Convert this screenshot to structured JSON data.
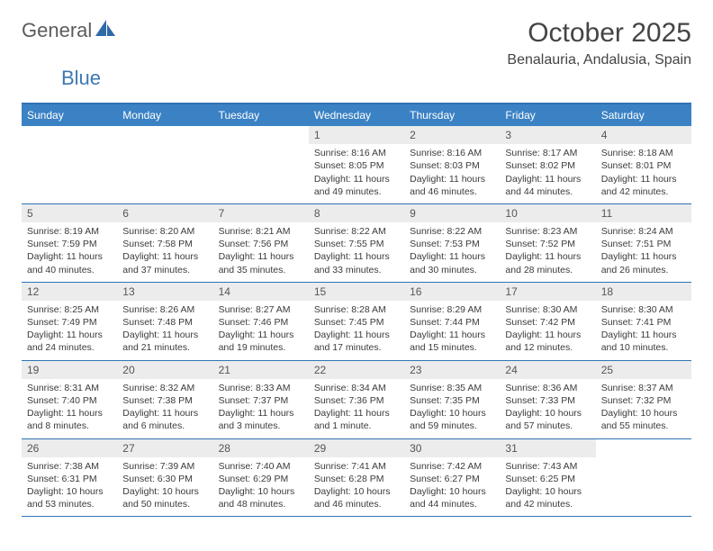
{
  "brand": {
    "name1": "General",
    "name2": "Blue"
  },
  "title": "October 2025",
  "location": "Benalauria, Andalusia, Spain",
  "colors": {
    "header_bg": "#3b82c4",
    "rule": "#2f72b6",
    "daynum_bg": "#ececec",
    "text": "#3b3b3b"
  },
  "day_headers": [
    "Sunday",
    "Monday",
    "Tuesday",
    "Wednesday",
    "Thursday",
    "Friday",
    "Saturday"
  ],
  "weeks": [
    [
      {
        "n": "",
        "sr": "",
        "ss": "",
        "dl": "",
        "empty": true
      },
      {
        "n": "",
        "sr": "",
        "ss": "",
        "dl": "",
        "empty": true
      },
      {
        "n": "",
        "sr": "",
        "ss": "",
        "dl": "",
        "empty": true
      },
      {
        "n": "1",
        "sr": "Sunrise: 8:16 AM",
        "ss": "Sunset: 8:05 PM",
        "dl": "Daylight: 11 hours and 49 minutes."
      },
      {
        "n": "2",
        "sr": "Sunrise: 8:16 AM",
        "ss": "Sunset: 8:03 PM",
        "dl": "Daylight: 11 hours and 46 minutes."
      },
      {
        "n": "3",
        "sr": "Sunrise: 8:17 AM",
        "ss": "Sunset: 8:02 PM",
        "dl": "Daylight: 11 hours and 44 minutes."
      },
      {
        "n": "4",
        "sr": "Sunrise: 8:18 AM",
        "ss": "Sunset: 8:01 PM",
        "dl": "Daylight: 11 hours and 42 minutes."
      }
    ],
    [
      {
        "n": "5",
        "sr": "Sunrise: 8:19 AM",
        "ss": "Sunset: 7:59 PM",
        "dl": "Daylight: 11 hours and 40 minutes."
      },
      {
        "n": "6",
        "sr": "Sunrise: 8:20 AM",
        "ss": "Sunset: 7:58 PM",
        "dl": "Daylight: 11 hours and 37 minutes."
      },
      {
        "n": "7",
        "sr": "Sunrise: 8:21 AM",
        "ss": "Sunset: 7:56 PM",
        "dl": "Daylight: 11 hours and 35 minutes."
      },
      {
        "n": "8",
        "sr": "Sunrise: 8:22 AM",
        "ss": "Sunset: 7:55 PM",
        "dl": "Daylight: 11 hours and 33 minutes."
      },
      {
        "n": "9",
        "sr": "Sunrise: 8:22 AM",
        "ss": "Sunset: 7:53 PM",
        "dl": "Daylight: 11 hours and 30 minutes."
      },
      {
        "n": "10",
        "sr": "Sunrise: 8:23 AM",
        "ss": "Sunset: 7:52 PM",
        "dl": "Daylight: 11 hours and 28 minutes."
      },
      {
        "n": "11",
        "sr": "Sunrise: 8:24 AM",
        "ss": "Sunset: 7:51 PM",
        "dl": "Daylight: 11 hours and 26 minutes."
      }
    ],
    [
      {
        "n": "12",
        "sr": "Sunrise: 8:25 AM",
        "ss": "Sunset: 7:49 PM",
        "dl": "Daylight: 11 hours and 24 minutes."
      },
      {
        "n": "13",
        "sr": "Sunrise: 8:26 AM",
        "ss": "Sunset: 7:48 PM",
        "dl": "Daylight: 11 hours and 21 minutes."
      },
      {
        "n": "14",
        "sr": "Sunrise: 8:27 AM",
        "ss": "Sunset: 7:46 PM",
        "dl": "Daylight: 11 hours and 19 minutes."
      },
      {
        "n": "15",
        "sr": "Sunrise: 8:28 AM",
        "ss": "Sunset: 7:45 PM",
        "dl": "Daylight: 11 hours and 17 minutes."
      },
      {
        "n": "16",
        "sr": "Sunrise: 8:29 AM",
        "ss": "Sunset: 7:44 PM",
        "dl": "Daylight: 11 hours and 15 minutes."
      },
      {
        "n": "17",
        "sr": "Sunrise: 8:30 AM",
        "ss": "Sunset: 7:42 PM",
        "dl": "Daylight: 11 hours and 12 minutes."
      },
      {
        "n": "18",
        "sr": "Sunrise: 8:30 AM",
        "ss": "Sunset: 7:41 PM",
        "dl": "Daylight: 11 hours and 10 minutes."
      }
    ],
    [
      {
        "n": "19",
        "sr": "Sunrise: 8:31 AM",
        "ss": "Sunset: 7:40 PM",
        "dl": "Daylight: 11 hours and 8 minutes."
      },
      {
        "n": "20",
        "sr": "Sunrise: 8:32 AM",
        "ss": "Sunset: 7:38 PM",
        "dl": "Daylight: 11 hours and 6 minutes."
      },
      {
        "n": "21",
        "sr": "Sunrise: 8:33 AM",
        "ss": "Sunset: 7:37 PM",
        "dl": "Daylight: 11 hours and 3 minutes."
      },
      {
        "n": "22",
        "sr": "Sunrise: 8:34 AM",
        "ss": "Sunset: 7:36 PM",
        "dl": "Daylight: 11 hours and 1 minute."
      },
      {
        "n": "23",
        "sr": "Sunrise: 8:35 AM",
        "ss": "Sunset: 7:35 PM",
        "dl": "Daylight: 10 hours and 59 minutes."
      },
      {
        "n": "24",
        "sr": "Sunrise: 8:36 AM",
        "ss": "Sunset: 7:33 PM",
        "dl": "Daylight: 10 hours and 57 minutes."
      },
      {
        "n": "25",
        "sr": "Sunrise: 8:37 AM",
        "ss": "Sunset: 7:32 PM",
        "dl": "Daylight: 10 hours and 55 minutes."
      }
    ],
    [
      {
        "n": "26",
        "sr": "Sunrise: 7:38 AM",
        "ss": "Sunset: 6:31 PM",
        "dl": "Daylight: 10 hours and 53 minutes."
      },
      {
        "n": "27",
        "sr": "Sunrise: 7:39 AM",
        "ss": "Sunset: 6:30 PM",
        "dl": "Daylight: 10 hours and 50 minutes."
      },
      {
        "n": "28",
        "sr": "Sunrise: 7:40 AM",
        "ss": "Sunset: 6:29 PM",
        "dl": "Daylight: 10 hours and 48 minutes."
      },
      {
        "n": "29",
        "sr": "Sunrise: 7:41 AM",
        "ss": "Sunset: 6:28 PM",
        "dl": "Daylight: 10 hours and 46 minutes."
      },
      {
        "n": "30",
        "sr": "Sunrise: 7:42 AM",
        "ss": "Sunset: 6:27 PM",
        "dl": "Daylight: 10 hours and 44 minutes."
      },
      {
        "n": "31",
        "sr": "Sunrise: 7:43 AM",
        "ss": "Sunset: 6:25 PM",
        "dl": "Daylight: 10 hours and 42 minutes."
      },
      {
        "n": "",
        "sr": "",
        "ss": "",
        "dl": "",
        "empty": true
      }
    ]
  ]
}
